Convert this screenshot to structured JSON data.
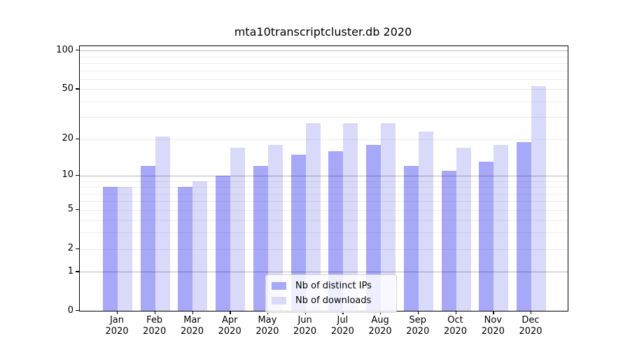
{
  "chart_data": {
    "type": "bar",
    "title": "mta10transcriptcluster.db 2020",
    "xlabel": "",
    "ylabel": "",
    "year_label": "2020",
    "categories": [
      "Jan",
      "Feb",
      "Mar",
      "Apr",
      "May",
      "Jun",
      "Jul",
      "Aug",
      "Sep",
      "Oct",
      "Nov",
      "Dec"
    ],
    "series": [
      {
        "name": "Nb of distinct IPs",
        "color": "#a8a8f8",
        "values": [
          8,
          12,
          8,
          10,
          12,
          15,
          16,
          18,
          12,
          11,
          13,
          19
        ]
      },
      {
        "name": "Nb of downloads",
        "color": "#d9d9fa",
        "values": [
          8,
          21,
          9,
          17,
          18,
          27,
          27,
          27,
          23,
          17,
          18,
          53
        ]
      }
    ],
    "y_scale": "log1p",
    "ylim": [
      0,
      108
    ],
    "y_ticks": [
      100,
      50,
      20,
      10,
      5,
      2,
      1,
      0
    ],
    "y_major_gridlines": [
      1,
      10,
      100
    ],
    "y_minor_gridlines": [
      2,
      3,
      4,
      5,
      6,
      7,
      8,
      9,
      20,
      30,
      40,
      50,
      60,
      70,
      80,
      90
    ],
    "grid": true,
    "legend_position": "lower center"
  },
  "colors": {
    "bar_dark": "#a8a8f8",
    "bar_light": "#d9d9fa",
    "grid_major": "#b5b5b5",
    "grid_minor": "#ececec",
    "axis": "#000000",
    "background": "#ffffff"
  }
}
